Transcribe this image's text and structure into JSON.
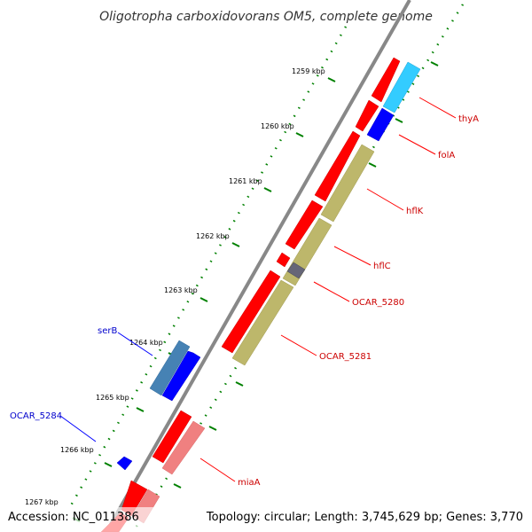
{
  "title": "Oligotropha carboxidovorans OM5, complete genome",
  "footer": {
    "accession": "Accession: NC_011386",
    "summary": "Topology: circular; Length: 3,745,629 bp; Genes: 3,770"
  },
  "ticks": [
    "1259 kbp",
    "1260 kbp",
    "1261 kbp",
    "1262 kbp",
    "1263 kbp",
    "1264 kbp",
    "1265 kbp",
    "1266 kbp",
    "1267 kbp"
  ],
  "labels": {
    "thyA": "thyA",
    "folA": "folA",
    "hflK": "hflK",
    "hflC": "hflC",
    "ocar5280": "OCAR_5280",
    "ocar5281": "OCAR_5281",
    "serB": "serB",
    "ocar5284": "OCAR_5284",
    "miaA": "miaA"
  },
  "colors": {
    "cds_forward": "#ff0000",
    "cds_reverse": "#0000ff",
    "label_forward": "#cc0000",
    "label_reverse": "#0000cc",
    "backbone": "#888888",
    "tick": "#008000",
    "cog_cyan": "#33ccff",
    "cog_olive": "#bdb76b",
    "cog_gray": "#666677",
    "cog_steel": "#4682b4",
    "cog_pink": "#f08080"
  }
}
